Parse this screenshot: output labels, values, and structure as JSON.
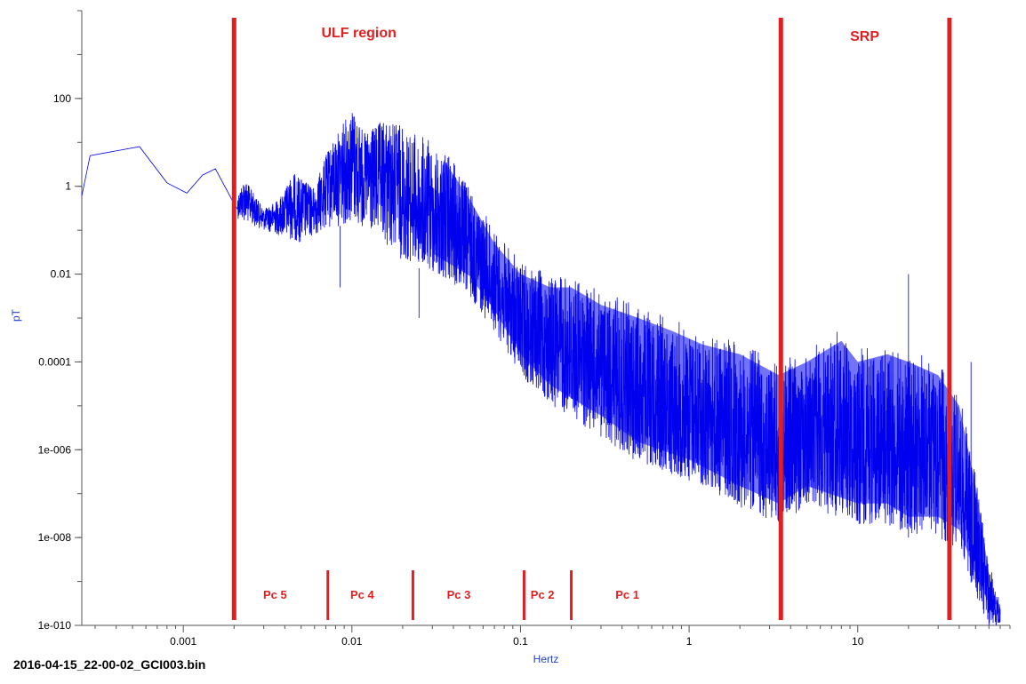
{
  "file_name": "2016-04-15_22-00-02_GCI003.bin",
  "colors": {
    "series": "#0000ee",
    "annotation": "#e02020",
    "axis_label": "#1f3fd0"
  },
  "chart_data": {
    "type": "line",
    "xlabel": "Hertz",
    "ylabel": "pT",
    "x_scale": "log",
    "y_scale": "log",
    "xlim": [
      0.00025,
      80
    ],
    "ylim": [
      1e-10,
      10000
    ],
    "grid": false,
    "x_ticks": [
      {
        "value": 0.001,
        "label": "0.001"
      },
      {
        "value": 0.01,
        "label": "0.01"
      },
      {
        "value": 0.1,
        "label": "0.1"
      },
      {
        "value": 1,
        "label": "1"
      },
      {
        "value": 10,
        "label": "10"
      }
    ],
    "y_ticks": [
      {
        "value": 100,
        "label": "100"
      },
      {
        "value": 1,
        "label": "1"
      },
      {
        "value": 0.01,
        "label": "0.01"
      },
      {
        "value": 0.0001,
        "label": "0.0001"
      },
      {
        "value": 1e-06,
        "label": "1e-006"
      },
      {
        "value": 1e-08,
        "label": "1e-008"
      },
      {
        "value": 1e-10,
        "label": "1e-010"
      }
    ],
    "series": [
      {
        "envelope_upper": [
          [
            0.00025,
            0.6
          ],
          [
            0.00028,
            5
          ],
          [
            0.00055,
            8
          ],
          [
            0.0008,
            1.2
          ],
          [
            0.00105,
            0.7
          ],
          [
            0.0013,
            1.8
          ],
          [
            0.00155,
            2.5
          ],
          [
            0.002,
            0.4
          ],
          [
            0.0023,
            1.5
          ],
          [
            0.003,
            0.3
          ],
          [
            0.0037,
            0.5
          ],
          [
            0.0045,
            2.0
          ],
          [
            0.006,
            0.9
          ],
          [
            0.007,
            5
          ],
          [
            0.0085,
            20
          ],
          [
            0.01,
            60
          ],
          [
            0.012,
            15
          ],
          [
            0.015,
            30
          ],
          [
            0.02,
            25
          ],
          [
            0.025,
            15
          ],
          [
            0.035,
            8
          ],
          [
            0.05,
            1
          ],
          [
            0.07,
            0.1
          ],
          [
            0.1,
            0.02
          ],
          [
            0.15,
            0.01
          ],
          [
            0.2,
            0.01
          ],
          [
            0.3,
            0.004
          ],
          [
            0.5,
            0.002
          ],
          [
            0.8,
            0.001
          ],
          [
            1.2,
            0.0005
          ],
          [
            2,
            0.0003
          ],
          [
            3.4,
            0.0001
          ],
          [
            5,
            0.0002
          ],
          [
            8,
            0.0006
          ],
          [
            10,
            0.0002
          ],
          [
            15,
            0.0003
          ],
          [
            20,
            0.0002
          ],
          [
            30,
            0.0001
          ],
          [
            40,
            2e-05
          ],
          [
            50,
            3e-07
          ],
          [
            60,
            3e-09
          ],
          [
            70,
            3e-10
          ]
        ],
        "envelope_lower": [
          [
            0.002,
            0.2
          ],
          [
            0.003,
            0.1
          ],
          [
            0.005,
            0.05
          ],
          [
            0.007,
            0.1
          ],
          [
            0.01,
            0.15
          ],
          [
            0.015,
            0.05
          ],
          [
            0.02,
            0.02
          ],
          [
            0.03,
            0.01
          ],
          [
            0.05,
            0.003
          ],
          [
            0.07,
            0.0005
          ],
          [
            0.1,
            5e-05
          ],
          [
            0.15,
            1e-05
          ],
          [
            0.2,
            5e-06
          ],
          [
            0.3,
            2e-06
          ],
          [
            0.5,
            5e-07
          ],
          [
            1,
            2e-07
          ],
          [
            2,
            5e-08
          ],
          [
            3.4,
            2e-08
          ],
          [
            5,
            5e-08
          ],
          [
            10,
            2e-08
          ],
          [
            15,
            2e-08
          ],
          [
            20,
            1e-08
          ],
          [
            30,
            1e-08
          ],
          [
            40,
            5e-09
          ],
          [
            50,
            5e-10
          ],
          [
            60,
            1e-10
          ],
          [
            70,
            1e-10
          ]
        ],
        "spikes": [
          [
            0.0085,
            0.005
          ],
          [
            0.025,
            0.001
          ],
          [
            0.11,
            0.0001
          ],
          [
            0.3,
            1e-05
          ],
          [
            1,
            5e-06
          ],
          [
            20,
            0.01
          ],
          [
            47,
            0.0001
          ]
        ]
      }
    ],
    "annotations": {
      "region_lines": [
        0.002,
        3.5,
        35
      ],
      "band_dividers": [
        0.0072,
        0.023,
        0.105,
        0.2
      ],
      "region_labels": [
        {
          "text": "ULF region",
          "x": 0.011
        },
        {
          "text": "SRP",
          "x": 11
        }
      ],
      "band_labels": [
        {
          "text": "Pc 5",
          "x": 0.0035
        },
        {
          "text": "Pc 4",
          "x": 0.0115
        },
        {
          "text": "Pc 3",
          "x": 0.043
        },
        {
          "text": "Pc 2",
          "x": 0.135
        },
        {
          "text": "Pc 1",
          "x": 0.43
        }
      ]
    }
  }
}
